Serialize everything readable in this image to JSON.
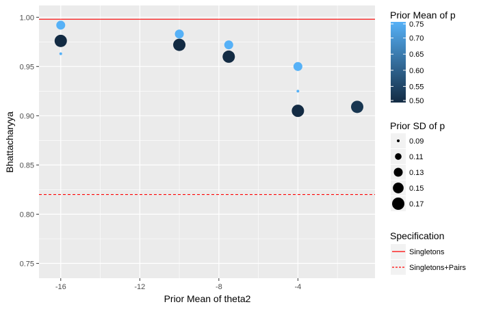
{
  "chart_data": {
    "type": "scatter",
    "xlabel": "Prior Mean of theta2",
    "ylabel": "Bhattacharyya",
    "xlim": [
      -17.1,
      -0.1
    ],
    "ylim": [
      0.735,
      1.012
    ],
    "x_ticks": [
      -16,
      -12,
      -8,
      -4
    ],
    "x_tick_labels": [
      "-16",
      "-12",
      "-8",
      "-4"
    ],
    "y_ticks": [
      0.75,
      0.8,
      0.85,
      0.9,
      0.95,
      1.0
    ],
    "y_tick_labels": [
      "0.75",
      "0.80",
      "0.85",
      "0.90",
      "0.95",
      "1.00"
    ],
    "grid": true,
    "points": [
      {
        "x": -16,
        "y": 0.992,
        "prior_mean_p": 0.75,
        "prior_sd_p": 0.13
      },
      {
        "x": -16,
        "y": 0.976,
        "prior_mean_p": 0.5,
        "prior_sd_p": 0.17
      },
      {
        "x": -16,
        "y": 0.963,
        "prior_mean_p": 0.75,
        "prior_sd_p": 0.09
      },
      {
        "x": -10,
        "y": 0.983,
        "prior_mean_p": 0.75,
        "prior_sd_p": 0.13
      },
      {
        "x": -10,
        "y": 0.972,
        "prior_mean_p": 0.5,
        "prior_sd_p": 0.17
      },
      {
        "x": -7.5,
        "y": 0.972,
        "prior_mean_p": 0.75,
        "prior_sd_p": 0.13
      },
      {
        "x": -7.5,
        "y": 0.96,
        "prior_mean_p": 0.5,
        "prior_sd_p": 0.17
      },
      {
        "x": -4,
        "y": 0.95,
        "prior_mean_p": 0.75,
        "prior_sd_p": 0.13
      },
      {
        "x": -4,
        "y": 0.925,
        "prior_mean_p": 0.75,
        "prior_sd_p": 0.09
      },
      {
        "x": -4,
        "y": 0.905,
        "prior_mean_p": 0.5,
        "prior_sd_p": 0.17
      },
      {
        "x": -1,
        "y": 0.909,
        "prior_mean_p": 0.52,
        "prior_sd_p": 0.17
      }
    ],
    "reference_lines": [
      {
        "y": 0.998,
        "spec": "Singletons",
        "color": "#ff0000",
        "style": "solid"
      },
      {
        "y": 0.82,
        "spec": "Singletons+Pairs",
        "color": "#ff0000",
        "style": "dashed"
      }
    ],
    "legends": {
      "color": {
        "title": "Prior Mean of p",
        "range": [
          0.5,
          0.75
        ],
        "breaks": [
          0.75,
          0.7,
          0.65,
          0.6,
          0.55,
          0.5
        ],
        "break_labels": [
          "0.75",
          "0.70",
          "0.65",
          "0.60",
          "0.55",
          "0.50"
        ],
        "low_color": "#132b43",
        "high_color": "#56b1f7"
      },
      "size": {
        "title": "Prior SD of p",
        "breaks": [
          0.09,
          0.11,
          0.13,
          0.15,
          0.17
        ],
        "break_labels": [
          "0.09",
          "0.11",
          "0.13",
          "0.15",
          "0.17"
        ]
      },
      "linetype": {
        "title": "Specification",
        "entries": [
          {
            "label": "Singletons",
            "style": "solid"
          },
          {
            "label": "Singletons+Pairs",
            "style": "dashed"
          }
        ]
      }
    },
    "panel_background": "#ebebeb",
    "grid_color": "#ffffff",
    "legend_placement": "right"
  }
}
